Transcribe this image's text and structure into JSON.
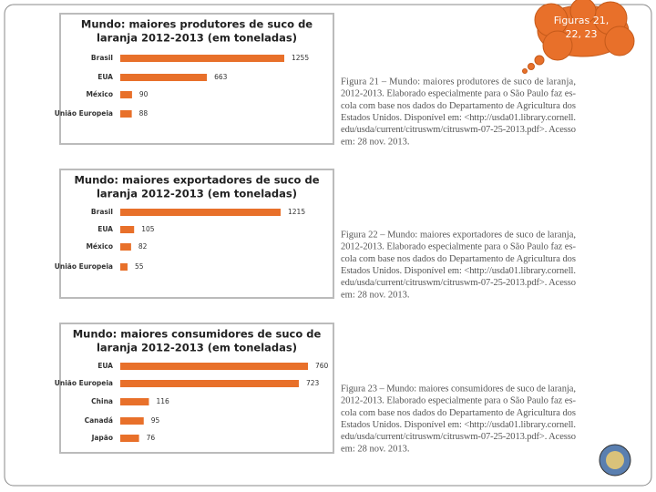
{
  "chart_data": [
    {
      "type": "bar",
      "orientation": "horizontal",
      "title": [
        "Mundo: maiores produtores de suco de",
        "laranja 2012-2013 (em toneladas)"
      ],
      "categories": [
        "Brasil",
        "EUA",
        "México",
        "União Europeia"
      ],
      "values": [
        1255,
        663,
        90,
        88
      ],
      "color": "#e8702a"
    },
    {
      "type": "bar",
      "orientation": "horizontal",
      "title": [
        "Mundo: maiores exportadores de suco de",
        "laranja 2012-2013 (em toneladas)"
      ],
      "categories": [
        "Brasil",
        "EUA",
        "México",
        "União Europeia"
      ],
      "values": [
        1215,
        105,
        82,
        55
      ],
      "color": "#e8702a"
    },
    {
      "type": "bar",
      "orientation": "horizontal",
      "title": [
        "Mundo: maiores consumidores de suco de",
        "laranja 2012-2013 (em toneladas)"
      ],
      "categories": [
        "EUA",
        "União Europeia",
        "China",
        "Canadá",
        "Japão"
      ],
      "values": [
        760,
        723,
        116,
        95,
        76
      ],
      "color": "#e8702a"
    }
  ],
  "captions": [
    [
      "Figura 21 – Mundo: maiores produtores de suco de laranja,",
      "2012-2013. Elaborado especialmente para o São Paulo faz es-",
      "cola com base nos dados do Departamento de Agricultura dos",
      "Estados Unidos. Disponível em: <http://usda01.library.cornell.",
      "edu/usda/current/citruswm/citruswm-07-25-2013.pdf>. Acesso",
      "em: 28 nov. 2013."
    ],
    [
      "Figura 22 – Mundo: maiores exportadores de suco de laranja,",
      "2012-2013. Elaborado especialmente para o São Paulo faz es-",
      "cola com base nos dados do Departamento de Agricultura dos",
      "Estados Unidos. Disponível em: <http://usda01.library.cornell.",
      "edu/usda/current/citruswm/citruswm-07-25-2013.pdf>. Acesso",
      "em: 28 nov. 2013."
    ],
    [
      "Figura 23 – Mundo: maiores consumidores de suco de laranja,",
      "2012-2013. Elaborado especialmente para o São Paulo faz es-",
      "cola com base nos dados do Departamento de Agricultura dos",
      "Estados Unidos. Disponível em: <http://usda01.library.cornell.",
      "edu/usda/current/citruswm/citruswm-07-25-2013.pdf>. Acesso",
      "em: 28 nov. 2013."
    ]
  ],
  "callout": [
    "Figuras 21,",
    "22, 23"
  ]
}
